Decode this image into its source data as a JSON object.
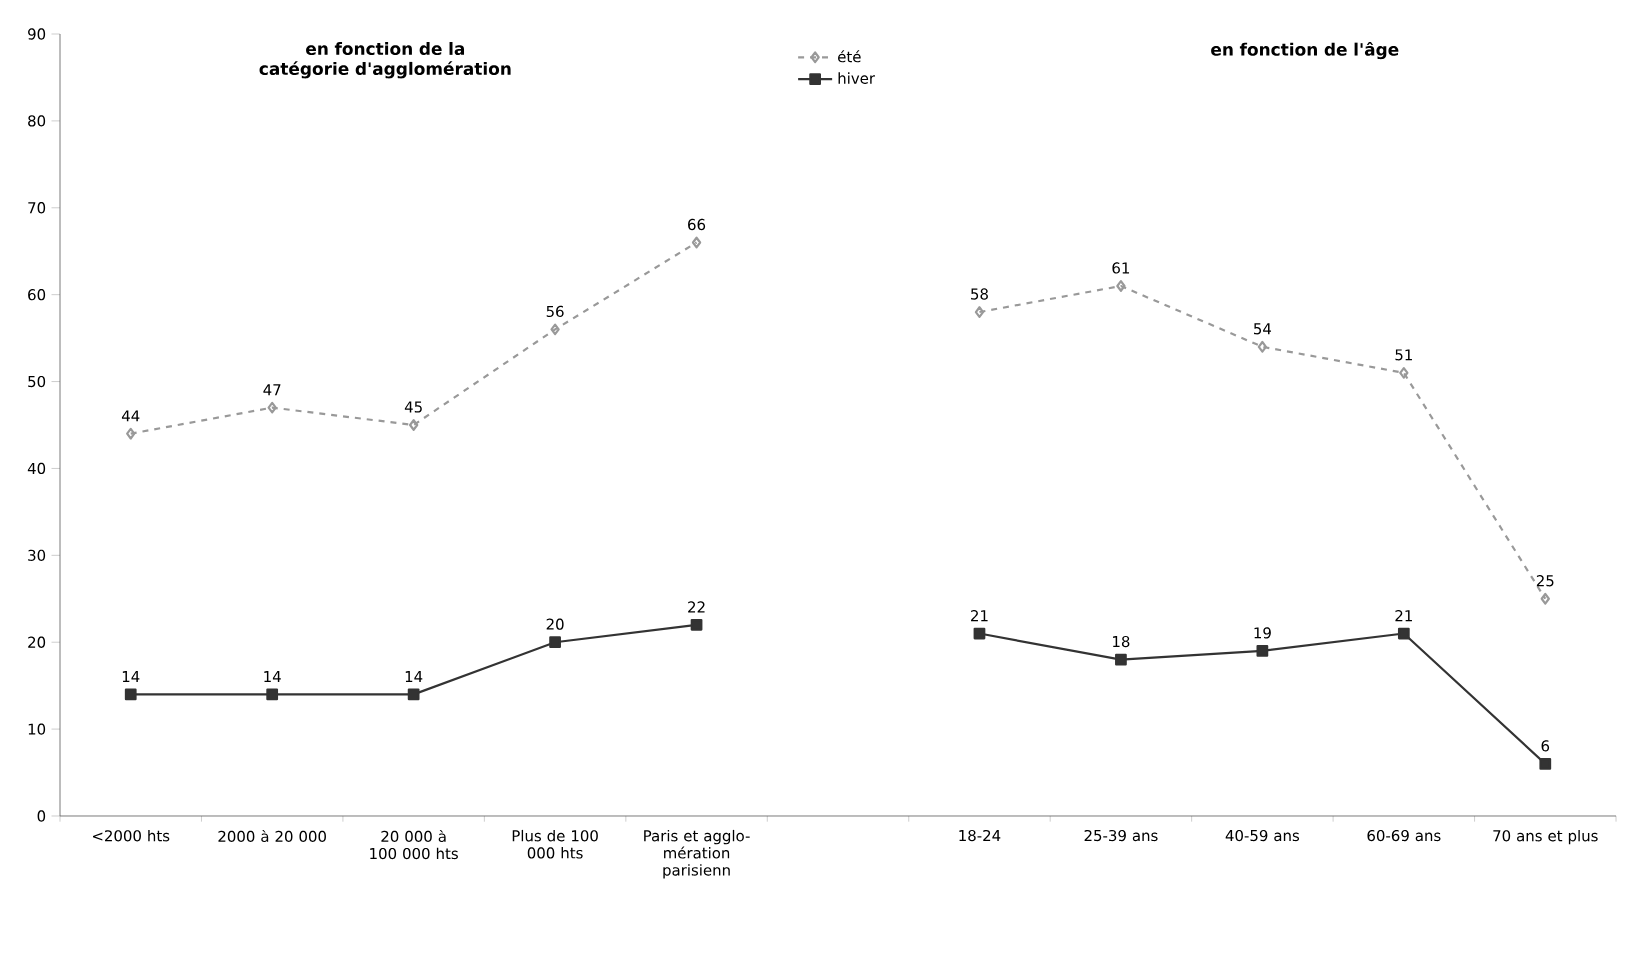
{
  "chart_data": {
    "type": "line",
    "categories": [
      "<2000 hts",
      "2000 à 20 000",
      "20 000 à 100 000 hts",
      "Plus de 100 000 hts",
      "Paris et agglo-mération parisienn",
      null,
      "18-24",
      "25-39 ans",
      "40-59 ans",
      "60-69 ans",
      "70 ans et plus"
    ],
    "series": [
      {
        "name": "été",
        "color": "#999999",
        "marker": "diamond",
        "line_style": "dashed",
        "values": [
          44,
          47,
          45,
          56,
          66,
          null,
          58,
          61,
          54,
          51,
          25
        ]
      },
      {
        "name": "hiver",
        "color": "#333333",
        "marker": "square",
        "line_style": "solid",
        "values": [
          14,
          14,
          14,
          20,
          22,
          null,
          21,
          18,
          19,
          21,
          6
        ]
      }
    ],
    "ylim": [
      0,
      90
    ],
    "yticks": [
      0,
      10,
      20,
      30,
      40,
      50,
      60,
      70,
      80,
      90
    ],
    "data_labels": true,
    "grid": false,
    "legend": "top",
    "annotations": [
      "en fonction de la catégorie d'agglomération",
      "en fonction de l'âge"
    ]
  }
}
